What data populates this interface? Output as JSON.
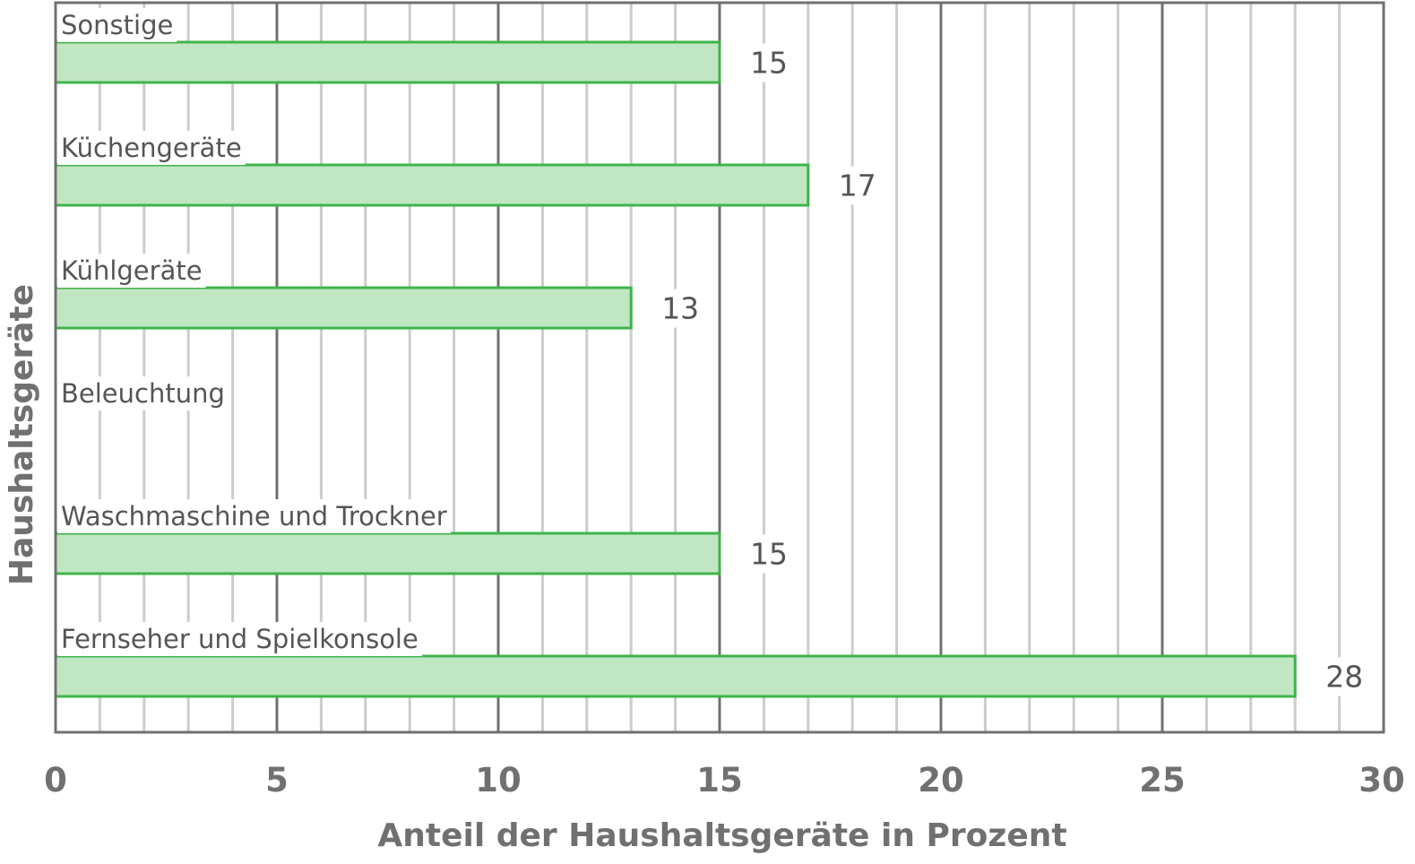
{
  "chart_data": {
    "type": "bar",
    "orientation": "horizontal",
    "categories": [
      "Sonstige",
      "Küchengeräte",
      "Kühlgeräte",
      "Beleuchtung",
      "Waschmaschine und Trockner",
      "Fernseher und Spielkonsole"
    ],
    "values": [
      15,
      17,
      13,
      null,
      15,
      28
    ],
    "value_labels": [
      "15",
      "17",
      "13",
      "",
      "15",
      "28"
    ],
    "xlabel": "Anteil der Haushaltsgeräte in Prozent",
    "ylabel": "Haushaltsgeräte",
    "xlim": [
      0,
      30
    ],
    "xticks": [
      "0",
      "5",
      "10",
      "15",
      "20",
      "25",
      "30"
    ],
    "major_tick_step": 5,
    "minor_tick_step": 1,
    "grid": true,
    "legend": "none",
    "colors": {
      "bar_fill": "#c0e6c2",
      "bar_stroke": "#3fb44a",
      "grid_major": "#707070",
      "grid_minor": "#cccccc",
      "text": "#555555"
    }
  }
}
